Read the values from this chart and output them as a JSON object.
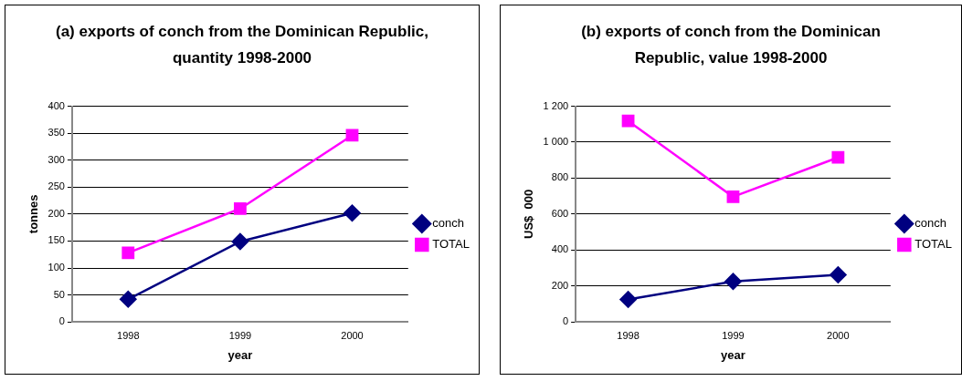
{
  "chart_data": [
    {
      "type": "line",
      "title": "(a) exports of conch from the Dominican Republic, quantity 1998-2000",
      "xlabel": "year",
      "ylabel": "tonnes",
      "categories": [
        "1998",
        "1999",
        "2000"
      ],
      "series": [
        {
          "name": "conch",
          "color": "#000080",
          "marker": "diamond",
          "values": [
            42,
            149,
            202
          ]
        },
        {
          "name": "TOTAL",
          "color": "#ff00ff",
          "marker": "square",
          "values": [
            128,
            210,
            346
          ]
        }
      ],
      "ylim": [
        0,
        400
      ],
      "yticks": [
        0,
        50,
        100,
        150,
        200,
        250,
        300,
        350,
        400
      ],
      "grid": "y",
      "legend": "right"
    },
    {
      "type": "line",
      "title": "(b) exports of conch from the Dominican Republic, value 1998-2000",
      "xlabel": "year",
      "ylabel": "US$  000",
      "categories": [
        "1998",
        "1999",
        "2000"
      ],
      "series": [
        {
          "name": "conch",
          "color": "#000080",
          "marker": "diamond",
          "values": [
            125,
            225,
            262
          ]
        },
        {
          "name": "TOTAL",
          "color": "#ff00ff",
          "marker": "square",
          "values": [
            1118,
            696,
            915
          ]
        }
      ],
      "ylim": [
        0,
        1200
      ],
      "yticks": [
        0,
        200,
        400,
        600,
        800,
        {
          "value": 1000,
          "label": "1 000"
        },
        {
          "value": 1200,
          "label": "1 200"
        }
      ],
      "grid": "y",
      "legend": "right"
    }
  ]
}
